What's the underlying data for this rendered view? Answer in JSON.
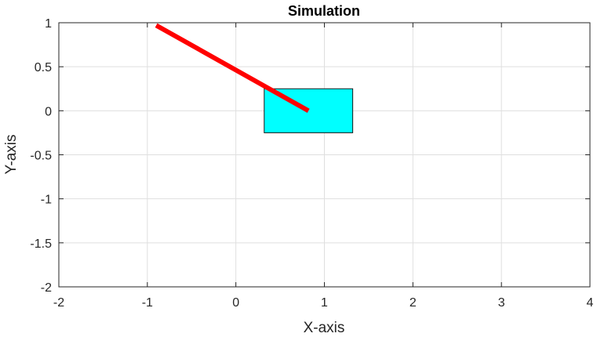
{
  "chart_data": {
    "type": "line",
    "title": "Simulation",
    "xlabel": "X-axis",
    "ylabel": "Y-axis",
    "xlim": [
      -2,
      4
    ],
    "ylim": [
      -2,
      1
    ],
    "xticks": [
      -2,
      -1,
      0,
      1,
      2,
      3,
      4
    ],
    "yticks": [
      -2,
      -1.5,
      -1,
      -0.5,
      0,
      0.5,
      1
    ],
    "xtick_labels": [
      "-2",
      "-1",
      "0",
      "1",
      "2",
      "3",
      "4"
    ],
    "ytick_labels": [
      "-2",
      "-1.5",
      "-1",
      "-0.5",
      "0",
      "0.5",
      "1"
    ],
    "grid": true,
    "shapes": {
      "cart": {
        "x_min": 0.32,
        "x_max": 1.32,
        "y_min": -0.25,
        "y_max": 0.25,
        "fill": "#00ffff",
        "stroke": "#1a1a1a"
      },
      "pendulum": {
        "x": [
          0.82,
          -0.9
        ],
        "y": [
          0.0,
          0.97
        ],
        "color": "#ff0000"
      }
    }
  }
}
